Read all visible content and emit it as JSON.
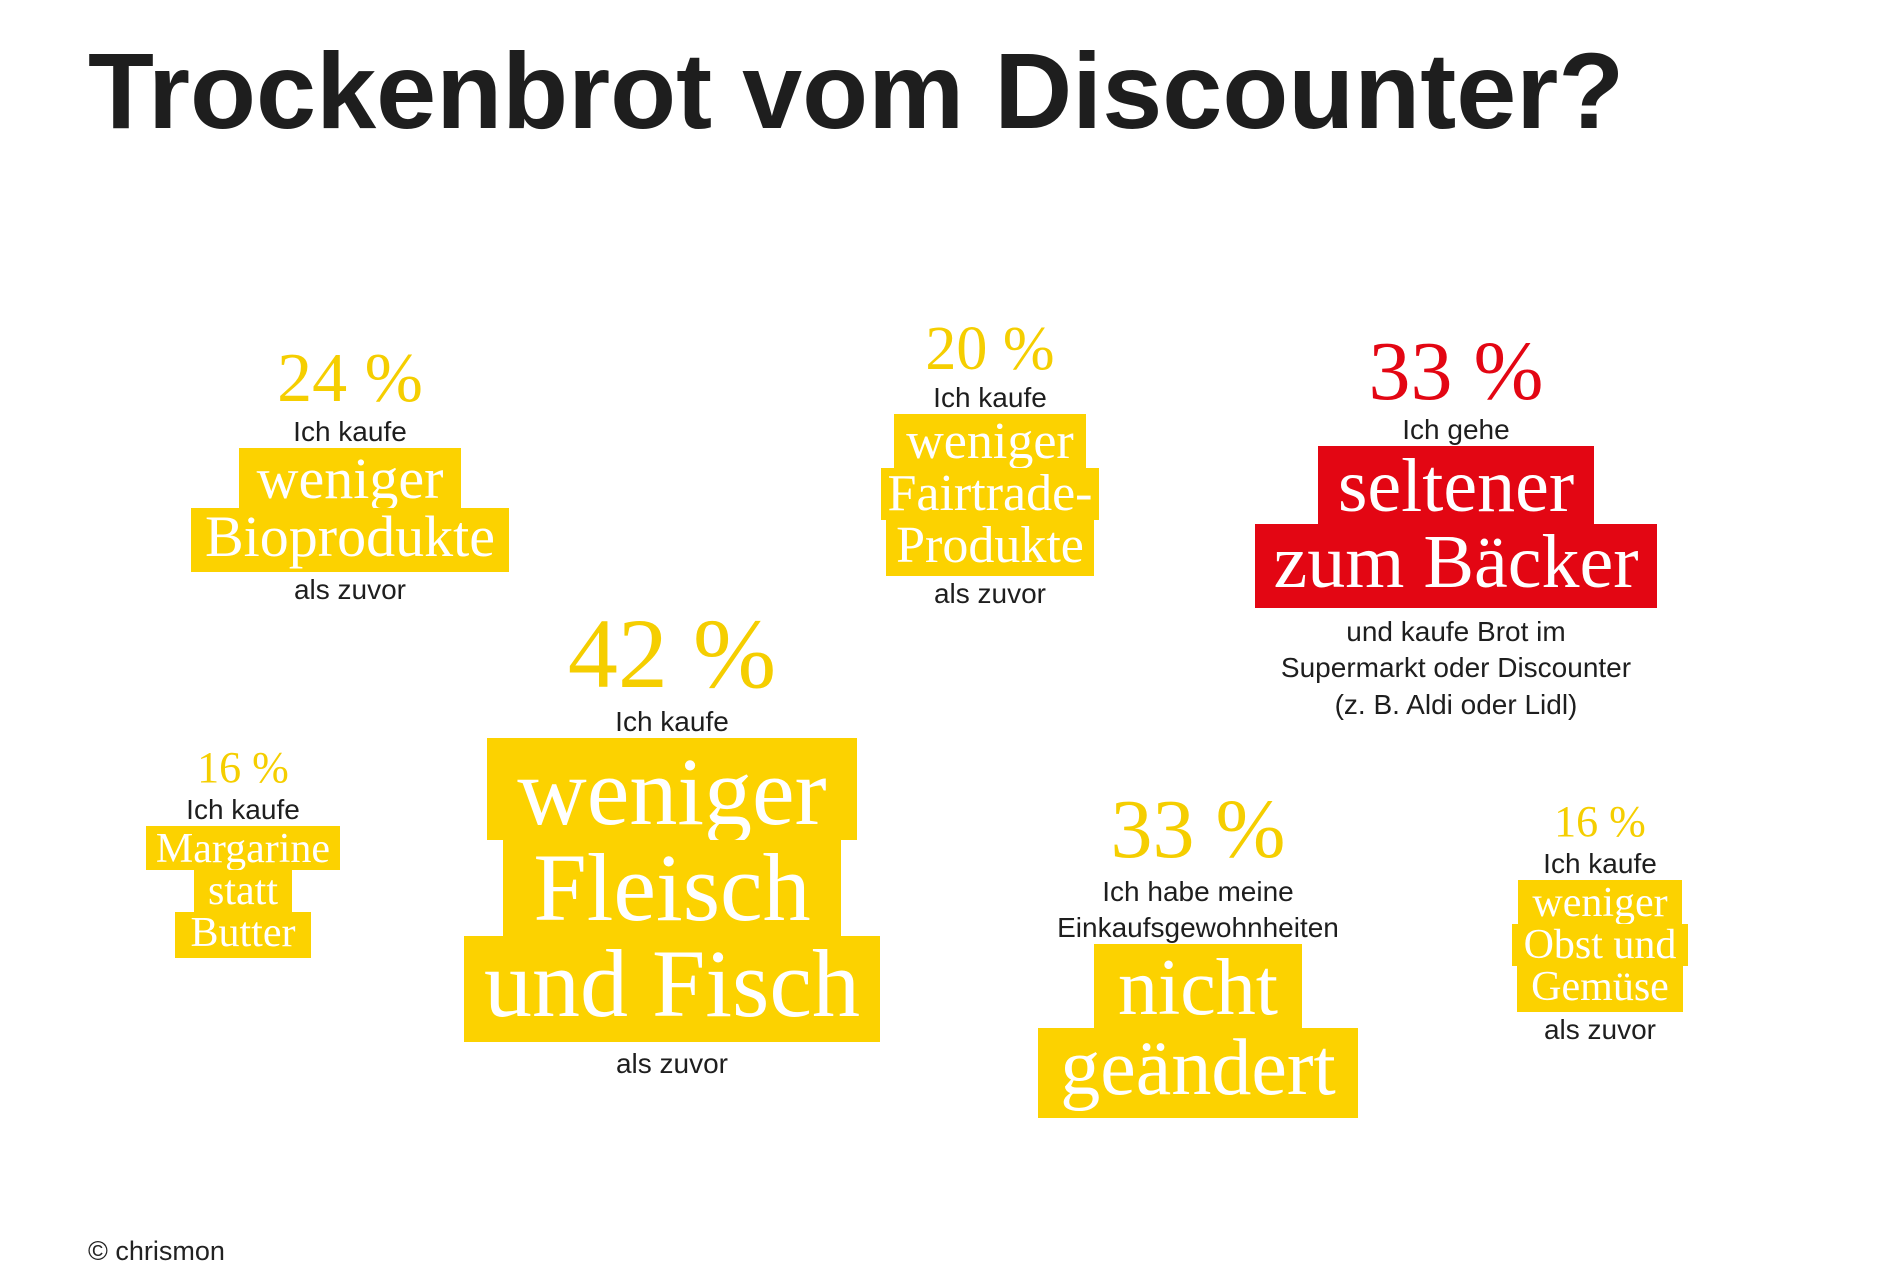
{
  "title": "Trockenbrot vom Discounter?",
  "credit": "© chrismon",
  "colors": {
    "accent_yellow": "#fcd200",
    "percent_yellow": "#f5ce00",
    "accent_red": "#e30613",
    "text": "#1e1e1e"
  },
  "chart_data": {
    "type": "infographic",
    "title": "Trockenbrot vom Discounter?",
    "items": [
      {
        "value": 24,
        "percent": "24 %",
        "lead": "Ich kaufe",
        "highlight": [
          "weniger",
          "Bioprodukte"
        ],
        "tail": [
          "als zuvor"
        ]
      },
      {
        "value": 20,
        "percent": "20 %",
        "lead": "Ich kaufe",
        "highlight": [
          "weniger",
          "Fairtrade-",
          "Produkte"
        ],
        "tail": [
          "als zuvor"
        ]
      },
      {
        "value": 33,
        "percent": "33 %",
        "lead": "Ich gehe",
        "highlight": [
          "seltener",
          "zum Bäcker"
        ],
        "tail": [
          "und kaufe Brot im",
          "Supermarkt oder Discounter",
          "(z. B. Aldi oder Lidl)"
        ]
      },
      {
        "value": 42,
        "percent": "42 %",
        "lead": "Ich kaufe",
        "highlight": [
          "weniger",
          "Fleisch",
          "und Fisch"
        ],
        "tail": [
          "als zuvor"
        ]
      },
      {
        "value": 16,
        "percent": "16 %",
        "lead": "Ich kaufe",
        "highlight": [
          "Margarine",
          "statt",
          "Butter"
        ],
        "tail": []
      },
      {
        "value": 33,
        "percent": "33 %",
        "lead": "Ich habe meine Einkaufsgewohnheiten",
        "lead_lines": [
          "Ich habe meine",
          "Einkaufsgewohnheiten"
        ],
        "highlight": [
          "nicht",
          "geändert"
        ],
        "tail": []
      },
      {
        "value": 16,
        "percent": "16 %",
        "lead": "Ich kaufe",
        "highlight": [
          "weniger",
          "Obst und",
          "Gemüse"
        ],
        "tail": [
          "als zuvor"
        ]
      }
    ]
  }
}
